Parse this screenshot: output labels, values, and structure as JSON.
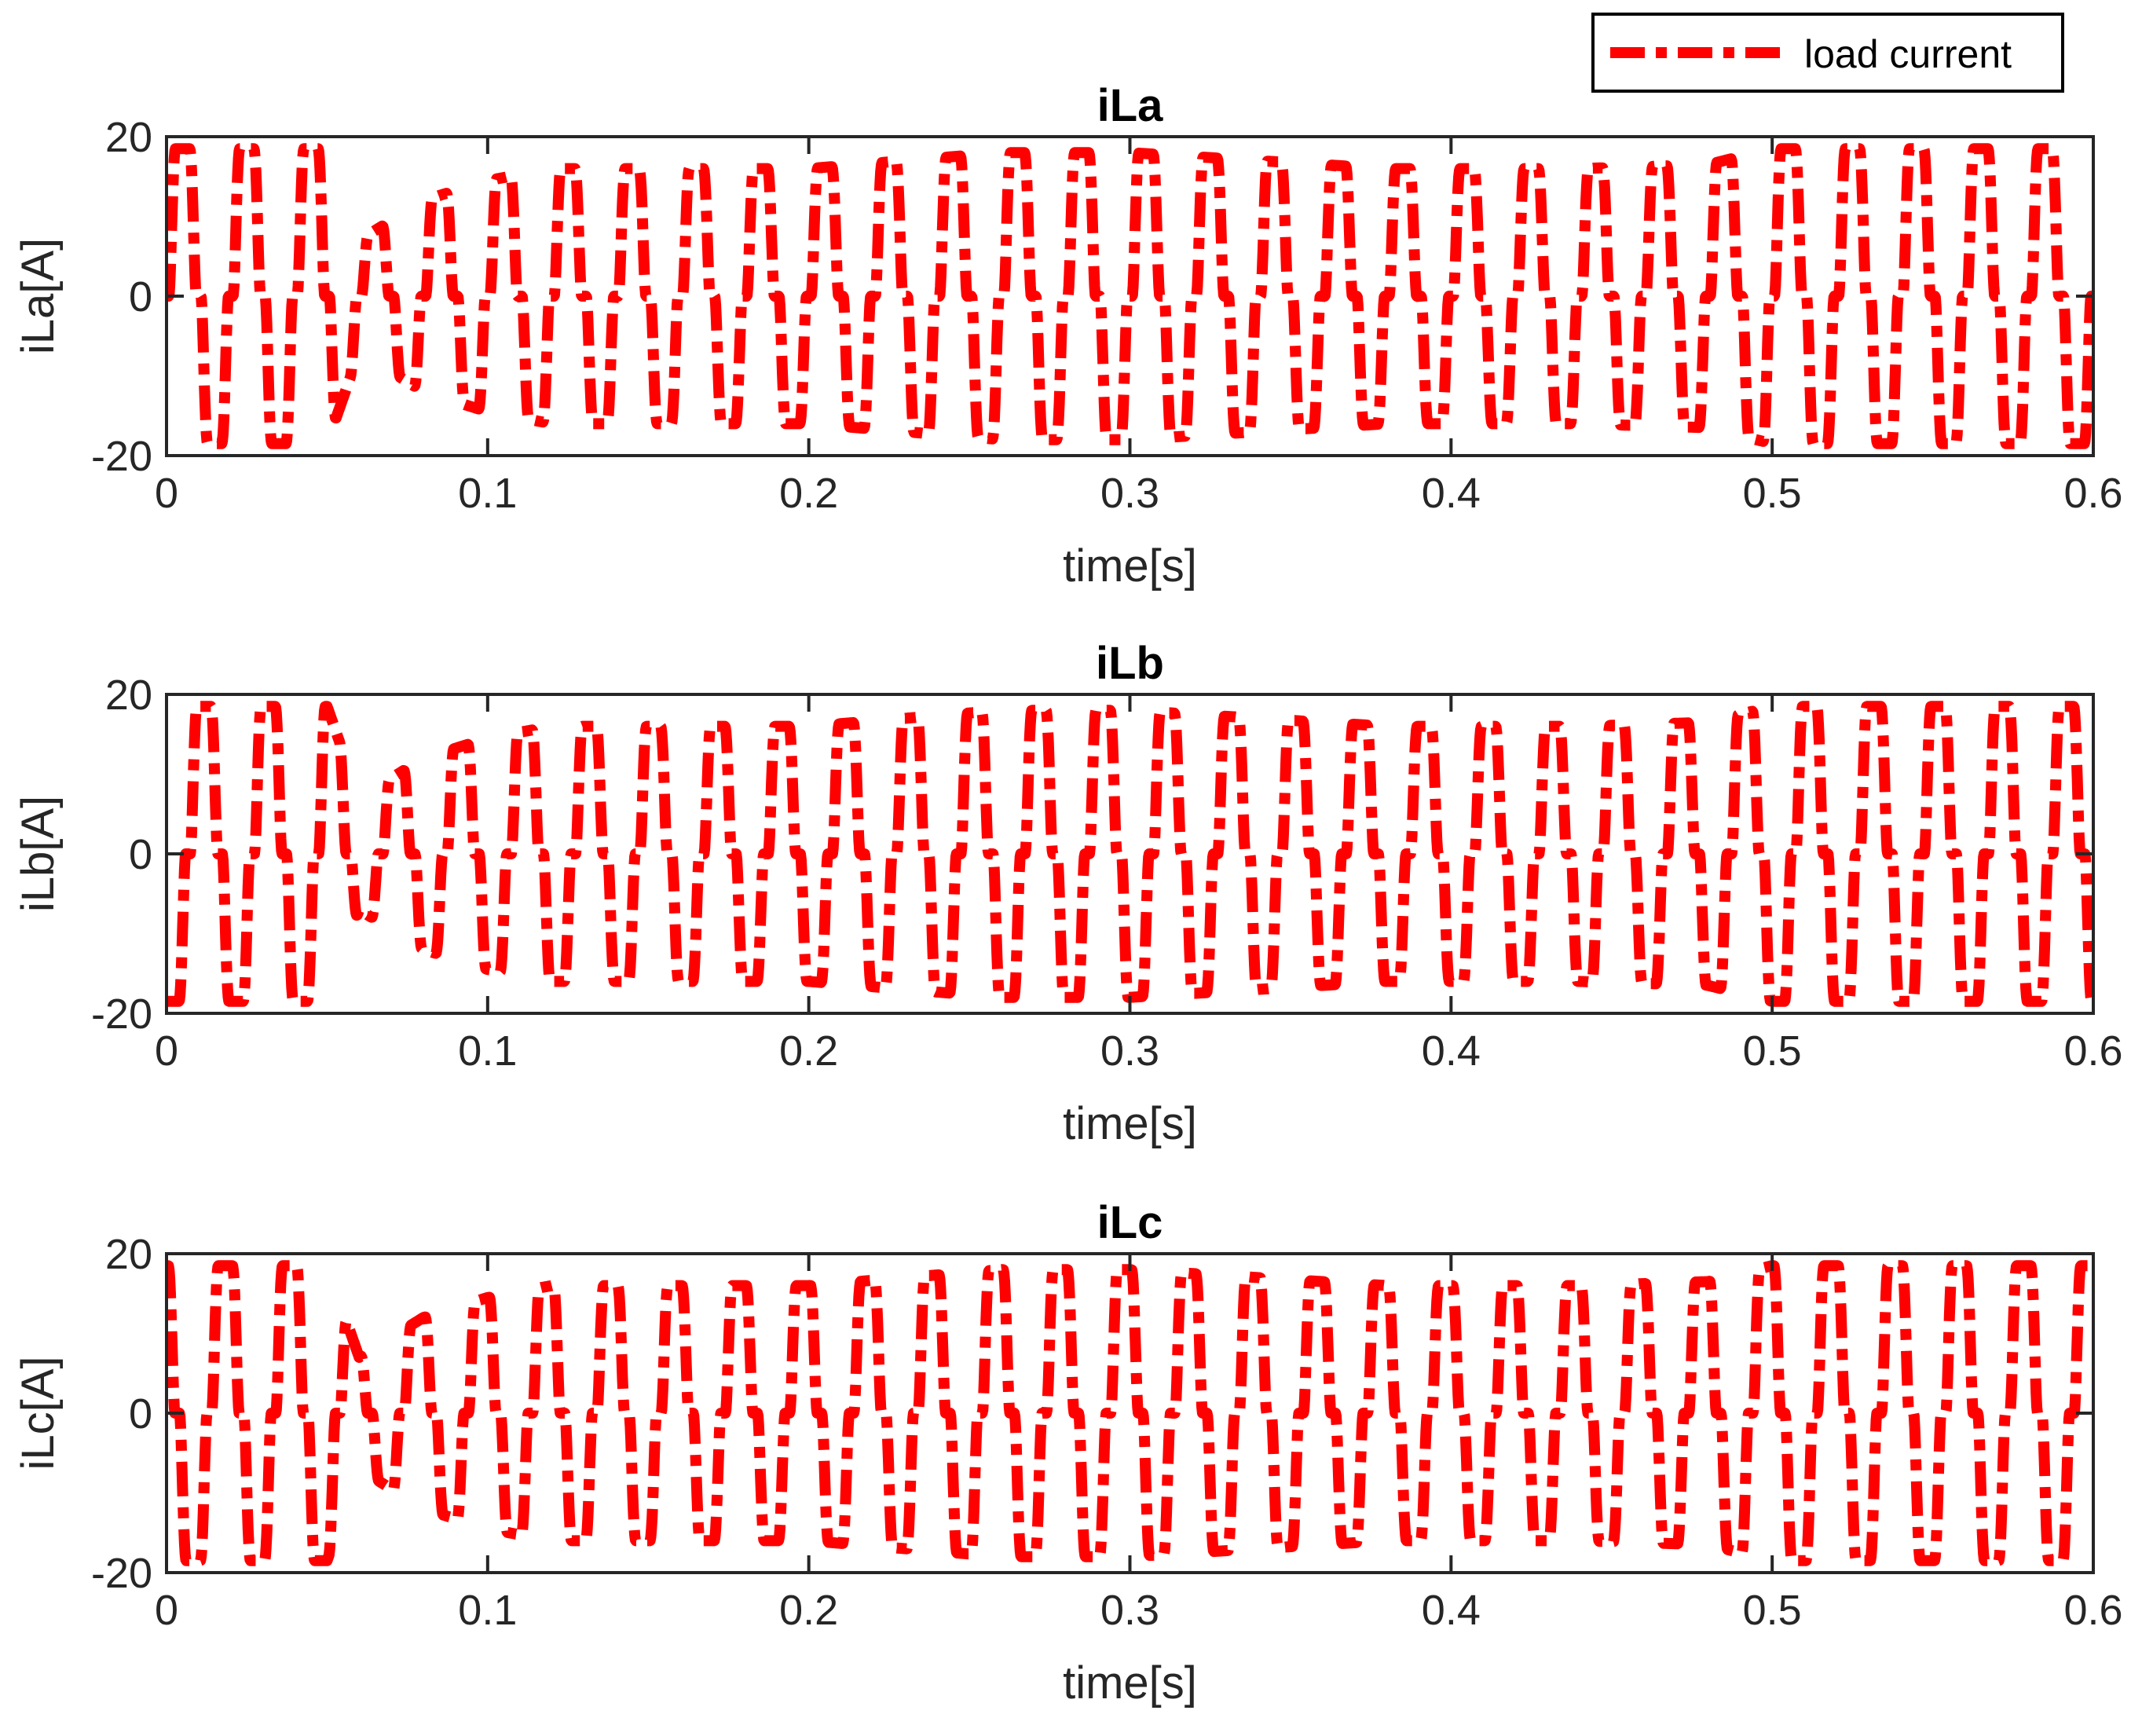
{
  "legend": {
    "label": "load current"
  },
  "colors": {
    "series": "#ff0000",
    "axes": "#262626",
    "background": "#ffffff"
  },
  "chart_data": [
    {
      "type": "line",
      "title": "iLa",
      "xlabel": "time[s]",
      "ylabel": "iLa[A]",
      "xlim": [
        0,
        0.6
      ],
      "ylim": [
        -20,
        20
      ],
      "xticks": [
        0,
        0.1,
        0.2,
        0.3,
        0.4,
        0.5,
        0.6
      ],
      "xtick_labels": [
        "0",
        "0.1",
        "0.2",
        "0.3",
        "0.4",
        "0.5",
        "0.6"
      ],
      "yticks": [
        -20,
        0,
        20
      ],
      "ytick_labels": [
        "-20",
        "0",
        "20"
      ],
      "grid": false,
      "series": [
        {
          "name": "load current",
          "style": "dash-dot",
          "frequency_hz": 50,
          "phase_deg": 0,
          "envelope": {
            "t": [
              0,
              0.05,
              0.06,
              0.08,
              0.1,
              0.12,
              0.2,
              0.26,
              0.3,
              0.38,
              0.44,
              0.48,
              0.5,
              0.6
            ],
            "amp": [
              18.5,
              18.5,
              7,
              12,
              14.5,
              16,
              16,
              18,
              18,
              16,
              16,
              16.5,
              18.5,
              18.5
            ]
          }
        }
      ]
    },
    {
      "type": "line",
      "title": "iLb",
      "xlabel": "time[s]",
      "ylabel": "iLb[A]",
      "xlim": [
        0,
        0.6
      ],
      "ylim": [
        -20,
        20
      ],
      "xticks": [
        0,
        0.1,
        0.2,
        0.3,
        0.4,
        0.5,
        0.6
      ],
      "xtick_labels": [
        "0",
        "0.1",
        "0.2",
        "0.3",
        "0.4",
        "0.5",
        "0.6"
      ],
      "yticks": [
        -20,
        0,
        20
      ],
      "ytick_labels": [
        "-20",
        "0",
        "20"
      ],
      "grid": false,
      "series": [
        {
          "name": "load current",
          "style": "dash-dot",
          "frequency_hz": 50,
          "phase_deg": -120,
          "envelope": {
            "t": [
              0,
              0.05,
              0.06,
              0.08,
              0.1,
              0.12,
              0.2,
              0.26,
              0.3,
              0.38,
              0.44,
              0.48,
              0.5,
              0.6
            ],
            "amp": [
              18.5,
              18.5,
              7,
              12,
              14.5,
              16,
              16,
              18,
              18,
              16,
              16,
              16.5,
              18.5,
              18.5
            ]
          }
        }
      ]
    },
    {
      "type": "line",
      "title": "iLc",
      "xlabel": "time[s]",
      "ylabel": "iLc[A]",
      "xlim": [
        0,
        0.6
      ],
      "ylim": [
        -20,
        20
      ],
      "xticks": [
        0,
        0.1,
        0.2,
        0.3,
        0.4,
        0.5,
        0.6
      ],
      "xtick_labels": [
        "0",
        "0.1",
        "0.2",
        "0.3",
        "0.4",
        "0.5",
        "0.6"
      ],
      "yticks": [
        -20,
        0,
        20
      ],
      "ytick_labels": [
        "-20",
        "0",
        "20"
      ],
      "grid": false,
      "series": [
        {
          "name": "load current",
          "style": "dash-dot",
          "frequency_hz": 50,
          "phase_deg": 120,
          "envelope": {
            "t": [
              0,
              0.05,
              0.06,
              0.08,
              0.1,
              0.12,
              0.2,
              0.26,
              0.3,
              0.38,
              0.44,
              0.48,
              0.5,
              0.6
            ],
            "amp": [
              18.5,
              18.5,
              7,
              12,
              14.5,
              16,
              16,
              18,
              18,
              16,
              16,
              16.5,
              18.5,
              18.5
            ]
          }
        }
      ]
    }
  ]
}
